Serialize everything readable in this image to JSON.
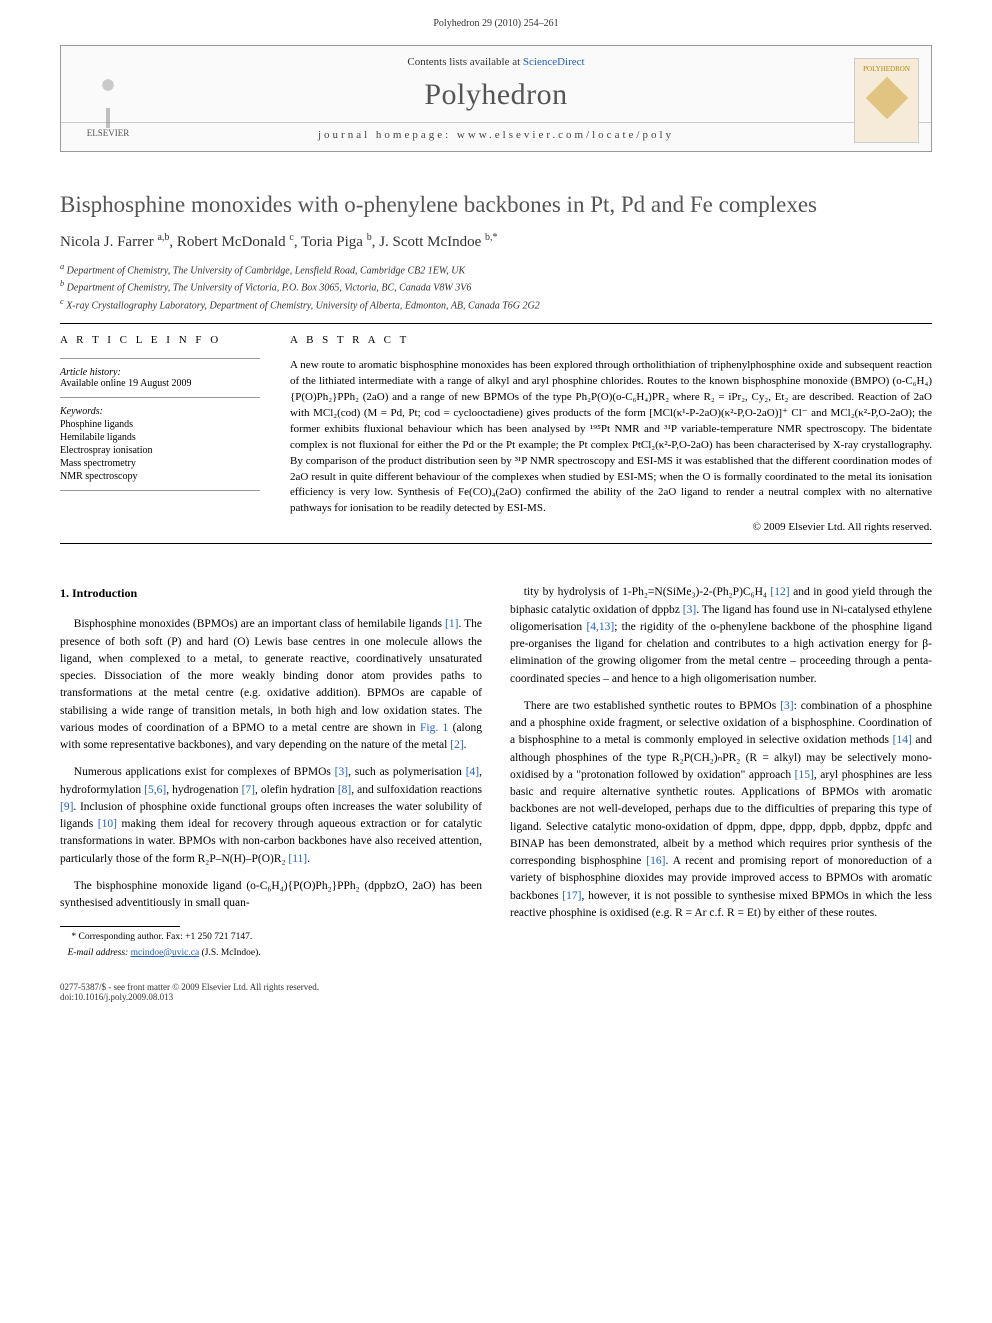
{
  "page_header": "Polyhedron 29 (2010) 254–261",
  "masthead": {
    "contents_line_pre": "Contents lists available at ",
    "contents_link": "ScienceDirect",
    "journal": "Polyhedron",
    "homepage_label": "journal homepage: www.elsevier.com/locate/poly",
    "publisher": "ELSEVIER",
    "cover_label": "POLYHEDRON"
  },
  "article": {
    "title": "Bisphosphine monoxides with o-phenylene backbones in Pt, Pd and Fe complexes",
    "authors_html": "Nicola J. Farrer <sup>a,b</sup>, Robert McDonald <sup>c</sup>, Toria Piga <sup>b</sup>, J. Scott McIndoe <sup>b,*</sup>",
    "affiliations": [
      "a Department of Chemistry, The University of Cambridge, Lensfield Road, Cambridge CB2 1EW, UK",
      "b Department of Chemistry, The University of Victoria, P.O. Box 3065, Victoria, BC, Canada V8W 3V6",
      "c X-ray Crystallography Laboratory, Department of Chemistry, University of Alberta, Edmonton, AB, Canada T6G 2G2"
    ]
  },
  "info": {
    "heading": "A R T I C L E   I N F O",
    "history_label": "Article history:",
    "history": "Available online 19 August 2009",
    "keywords_label": "Keywords:",
    "keywords": [
      "Phosphine ligands",
      "Hemilabile ligands",
      "Electrospray ionisation",
      "Mass spectrometry",
      "NMR spectroscopy"
    ]
  },
  "abstract": {
    "heading": "A B S T R A C T",
    "text": "A new route to aromatic bisphosphine monoxides has been explored through ortholithiation of triphenylphosphine oxide and subsequent reaction of the lithiated intermediate with a range of alkyl and aryl phosphine chlorides. Routes to the known bisphosphine monoxide (BMPO) (o-C₆H₄){P(O)Ph₂}PPh₂ (2aO) and a range of new BPMOs of the type Ph₂P(O)(o-C₆H₄)PR₂ where R₂ = iPr₂, Cy₂, Et₂ are described. Reaction of 2aO with MCl₂(cod) (M = Pd, Pt; cod = cyclooctadiene) gives products of the form [MCl(κ¹-P-2aO)(κ²-P,O-2aO)]⁺ Cl⁻ and MCl₂(κ²-P,O-2aO); the former exhibits fluxional behaviour which has been analysed by ¹⁹⁵Pt NMR and ³¹P variable-temperature NMR spectroscopy. The bidentate complex is not fluxional for either the Pd or the Pt example; the Pt complex PtCl₂(κ²-P,O-2aO) has been characterised by X-ray crystallography. By comparison of the product distribution seen by ³¹P NMR spectroscopy and ESI-MS it was established that the different coordination modes of 2aO result in quite different behaviour of the complexes when studied by ESI-MS; when the O is formally coordinated to the metal its ionisation efficiency is very low. Synthesis of Fe(CO)₄(2aO) confirmed the ability of the 2aO ligand to render a neutral complex with no alternative pathways for ionisation to be readily detected by ESI-MS.",
    "copyright": "© 2009 Elsevier Ltd. All rights reserved."
  },
  "body": {
    "section_heading": "1. Introduction",
    "col1": [
      "Bisphosphine monoxides (BPMOs) are an important class of hemilabile ligands [1]. The presence of both soft (P) and hard (O) Lewis base centres in one molecule allows the ligand, when complexed to a metal, to generate reactive, coordinatively unsaturated species. Dissociation of the more weakly binding donor atom provides paths to transformations at the metal centre (e.g. oxidative addition). BPMOs are capable of stabilising a wide range of transition metals, in both high and low oxidation states. The various modes of coordination of a BPMO to a metal centre are shown in Fig. 1 (along with some representative backbones), and vary depending on the nature of the metal [2].",
      "Numerous applications exist for complexes of BPMOs [3], such as polymerisation [4], hydroformylation [5,6], hydrogenation [7], olefin hydration [8], and sulfoxidation reactions [9]. Inclusion of phosphine oxide functional groups often increases the water solubility of ligands [10] making them ideal for recovery through aqueous extraction or for catalytic transformations in water. BPMOs with non-carbon backbones have also received attention, particularly those of the form R₂P–N(H)–P(O)R₂ [11].",
      "The bisphosphine monoxide ligand (o-C₆H₄){P(O)Ph₂}PPh₂ (dppbzO, 2aO) has been synthesised adventitiously in small quan-"
    ],
    "col2": [
      "tity by hydrolysis of 1-Ph₂=N(SiMe₃)-2-(Ph₂P)C₆H₄ [12] and in good yield through the biphasic catalytic oxidation of dppbz [3]. The ligand has found use in Ni-catalysed ethylene oligomerisation [4,13]; the rigidity of the o-phenylene backbone of the phosphine ligand pre-organises the ligand for chelation and contributes to a high activation energy for β-elimination of the growing oligomer from the metal centre – proceeding through a penta-coordinated species – and hence to a high oligomerisation number.",
      "There are two established synthetic routes to BPMOs [3]: combination of a phosphine and a phosphine oxide fragment, or selective oxidation of a bisphosphine. Coordination of a bisphosphine to a metal is commonly employed in selective oxidation methods [14] and although phosphines of the type R₂P(CH₂)ₙPR₂ (R = alkyl) may be selectively mono-oxidised by a \"protonation followed by oxidation\" approach [15], aryl phosphines are less basic and require alternative synthetic routes. Applications of BPMOs with aromatic backbones are not well-developed, perhaps due to the difficulties of preparing this type of ligand. Selective catalytic mono-oxidation of dppm, dppe, dppp, dppb, dppbz, dppfc and BINAP has been demonstrated, albeit by a method which requires prior synthesis of the corresponding bisphosphine [16]. A recent and promising report of monoreduction of a variety of bisphosphine dioxides may provide improved access to BPMOs with aromatic backbones [17], however, it is not possible to synthesise mixed BPMOs in which the less reactive phosphine is oxidised (e.g. R = Ar c.f. R = Et) by either of these routes."
    ]
  },
  "footnote": {
    "corr": "* Corresponding author. Fax: +1 250 721 7147.",
    "email_label": "E-mail address:",
    "email": "mcindoe@uvic.ca",
    "email_who": "(J.S. McIndoe)."
  },
  "footer": {
    "line1": "0277-5387/$ - see front matter © 2009 Elsevier Ltd. All rights reserved.",
    "line2": "doi:10.1016/j.poly.2009.08.013"
  },
  "colors": {
    "link": "#2060c0",
    "text": "#000000",
    "muted": "#555555"
  }
}
